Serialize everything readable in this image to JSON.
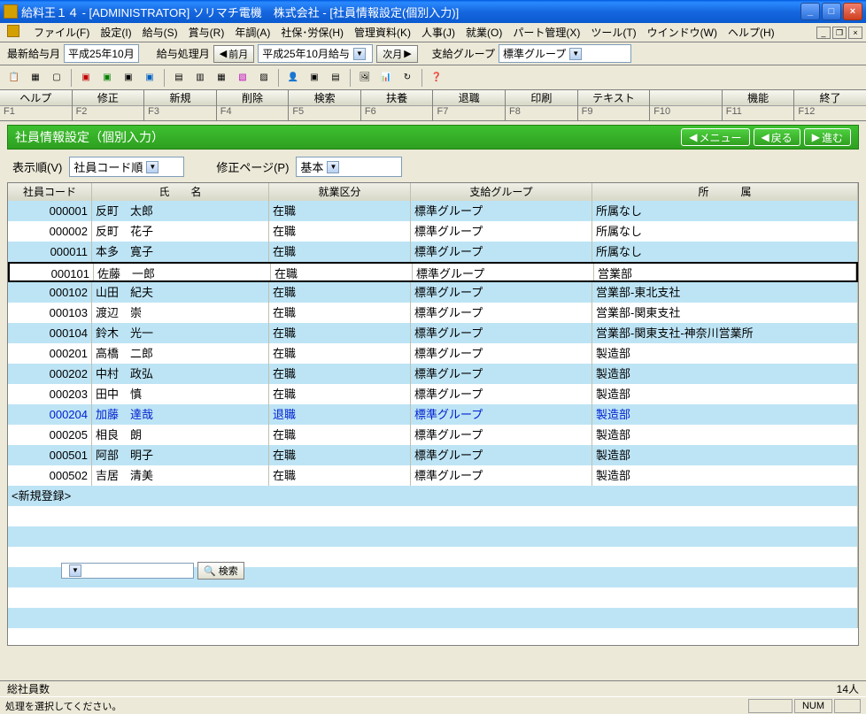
{
  "window": {
    "title": "給料王１４ - [ADMINISTRATOR] ソリマチ電機　株式会社 - [社員情報設定(個別入力)]"
  },
  "menu": {
    "items": [
      "ファイル(F)",
      "設定(I)",
      "給与(S)",
      "賞与(R)",
      "年調(A)",
      "社保･労保(H)",
      "管理資料(K)",
      "人事(J)",
      "就業(O)",
      "パート管理(X)",
      "ツール(T)",
      "ウインドウ(W)",
      "ヘルプ(H)"
    ]
  },
  "toolbar1": {
    "latest_label": "最新給与月",
    "latest_value": "平成25年10月",
    "process_label": "給与処理月",
    "prev": "前月",
    "process_value": "平成25年10月給与",
    "next": "次月",
    "group_label": "支給グループ",
    "group_value": "標準グループ"
  },
  "fkeys": {
    "labels": [
      "ヘルプ",
      "修正",
      "新規",
      "削除",
      "検索",
      "扶養",
      "退職",
      "印刷",
      "テキスト",
      "",
      "機能",
      "終了"
    ],
    "keys": [
      "F1",
      "F2",
      "F3",
      "F4",
      "F5",
      "F6",
      "F7",
      "F8",
      "F9",
      "F10",
      "F11",
      "F12"
    ]
  },
  "green": {
    "title": "社員情報設定（個別入力）",
    "menu": "メニュー",
    "back": "戻る",
    "forward": "進む"
  },
  "ctrl": {
    "order_label": "表示順(V)",
    "order_value": "社員コード順",
    "page_label": "修正ページ(P)",
    "page_value": "基本"
  },
  "grid": {
    "headers": [
      "社員コード",
      "氏　　名",
      "就業区分",
      "支給グループ",
      "所　　　属"
    ],
    "rows": [
      {
        "code": "000001",
        "name": "反町　太郎",
        "status": "在職",
        "group": "標準グループ",
        "dept": "所属なし",
        "sel": false,
        "blue": false
      },
      {
        "code": "000002",
        "name": "反町　花子",
        "status": "在職",
        "group": "標準グループ",
        "dept": "所属なし",
        "sel": false,
        "blue": false
      },
      {
        "code": "000011",
        "name": "本多　寛子",
        "status": "在職",
        "group": "標準グループ",
        "dept": "所属なし",
        "sel": false,
        "blue": false
      },
      {
        "code": "000101",
        "name": "佐藤　一郎",
        "status": "在職",
        "group": "標準グループ",
        "dept": "営業部",
        "sel": true,
        "blue": false
      },
      {
        "code": "000102",
        "name": "山田　紀夫",
        "status": "在職",
        "group": "標準グループ",
        "dept": "営業部-東北支社",
        "sel": false,
        "blue": false
      },
      {
        "code": "000103",
        "name": "渡辺　崇",
        "status": "在職",
        "group": "標準グループ",
        "dept": "営業部-関東支社",
        "sel": false,
        "blue": false
      },
      {
        "code": "000104",
        "name": "鈴木　光一",
        "status": "在職",
        "group": "標準グループ",
        "dept": "営業部-関東支社-神奈川営業所",
        "sel": false,
        "blue": false
      },
      {
        "code": "000201",
        "name": "高橋　二郎",
        "status": "在職",
        "group": "標準グループ",
        "dept": "製造部",
        "sel": false,
        "blue": false
      },
      {
        "code": "000202",
        "name": "中村　政弘",
        "status": "在職",
        "group": "標準グループ",
        "dept": "製造部",
        "sel": false,
        "blue": false
      },
      {
        "code": "000203",
        "name": "田中　慎",
        "status": "在職",
        "group": "標準グループ",
        "dept": "製造部",
        "sel": false,
        "blue": false
      },
      {
        "code": "000204",
        "name": "加藤　達哉",
        "status": "退職",
        "group": "標準グループ",
        "dept": "製造部",
        "sel": false,
        "blue": true
      },
      {
        "code": "000205",
        "name": "相良　朗",
        "status": "在職",
        "group": "標準グループ",
        "dept": "製造部",
        "sel": false,
        "blue": false
      },
      {
        "code": "000501",
        "name": "阿部　明子",
        "status": "在職",
        "group": "標準グループ",
        "dept": "製造部",
        "sel": false,
        "blue": false
      },
      {
        "code": "000502",
        "name": "吉居　清美",
        "status": "在職",
        "group": "標準グループ",
        "dept": "製造部",
        "sel": false,
        "blue": false
      }
    ],
    "newreg": "<新規登録>",
    "extra_rows": 6
  },
  "search": {
    "btn": "検索"
  },
  "footer": {
    "total_label": "総社員数",
    "total_value": "14人",
    "status_msg": "処理を選択してください。",
    "num": "NUM"
  }
}
